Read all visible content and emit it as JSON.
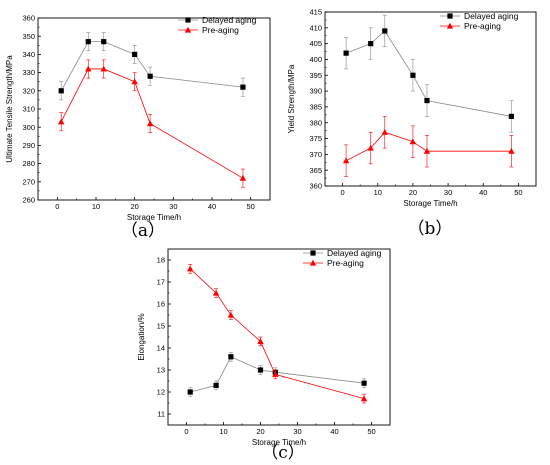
{
  "chart_data": [
    {
      "type": "line",
      "panel_label": "（a）",
      "xlabel": "Storage Time/h",
      "ylabel": "Ultimate Tensile Strength/MPa",
      "xlim": [
        -5,
        55
      ],
      "ylim": [
        260,
        360
      ],
      "xticks": [
        0,
        10,
        20,
        30,
        40,
        50
      ],
      "yticks": [
        260,
        270,
        280,
        290,
        300,
        310,
        320,
        330,
        340,
        350,
        360
      ],
      "legend_position": "top-right",
      "series": [
        {
          "name": "Delayed aging",
          "marker": "square",
          "color": "#000000",
          "line_color": "#888888",
          "x": [
            1,
            8,
            12,
            20,
            24,
            48
          ],
          "y": [
            320,
            347,
            347,
            340,
            328,
            322
          ],
          "err": [
            5,
            5,
            5,
            5,
            5,
            5
          ]
        },
        {
          "name": "Pre-aging",
          "marker": "triangle",
          "color": "#ff0000",
          "line_color": "#ff0000",
          "x": [
            1,
            8,
            12,
            20,
            24,
            48
          ],
          "y": [
            303,
            332,
            332,
            325,
            302,
            272
          ],
          "err": [
            5,
            5,
            5,
            5,
            5,
            5
          ]
        }
      ]
    },
    {
      "type": "line",
      "panel_label": "（b）",
      "xlabel": "Storage Time/h",
      "ylabel": "Yield Strength/MPa",
      "xlim": [
        -5,
        55
      ],
      "ylim": [
        360,
        415
      ],
      "xticks": [
        0,
        10,
        20,
        30,
        40,
        50
      ],
      "yticks": [
        360,
        365,
        370,
        375,
        380,
        385,
        390,
        395,
        400,
        405,
        410,
        415
      ],
      "legend_position": "top-right",
      "series": [
        {
          "name": "Delayed aging",
          "marker": "square",
          "color": "#000000",
          "line_color": "#888888",
          "x": [
            1,
            8,
            12,
            20,
            24,
            48
          ],
          "y": [
            402,
            405,
            409,
            395,
            387,
            382
          ],
          "err": [
            5,
            5,
            5,
            5,
            5,
            5
          ]
        },
        {
          "name": "Pre-aging",
          "marker": "triangle",
          "color": "#ff0000",
          "line_color": "#ff0000",
          "x": [
            1,
            8,
            12,
            20,
            24,
            48
          ],
          "y": [
            368,
            372,
            377,
            374,
            371,
            371
          ],
          "err": [
            5,
            5,
            5,
            5,
            5,
            5
          ]
        }
      ]
    },
    {
      "type": "line",
      "panel_label": "（c）",
      "xlabel": "Storage Time/h",
      "ylabel": "Elongation/%",
      "xlim": [
        -5,
        55
      ],
      "ylim": [
        10.5,
        18.5
      ],
      "xticks": [
        0,
        10,
        20,
        30,
        40,
        50
      ],
      "yticks": [
        11,
        12,
        13,
        14,
        15,
        16,
        17,
        18
      ],
      "legend_position": "top-right",
      "series": [
        {
          "name": "Delayed aging",
          "marker": "square",
          "color": "#000000",
          "line_color": "#888888",
          "x": [
            1,
            8,
            12,
            20,
            24,
            48
          ],
          "y": [
            12.0,
            12.3,
            13.6,
            13.0,
            12.9,
            12.4
          ],
          "err": [
            0.2,
            0.2,
            0.2,
            0.2,
            0.2,
            0.2
          ]
        },
        {
          "name": "Pre-aging",
          "marker": "triangle",
          "color": "#ff0000",
          "line_color": "#ff0000",
          "x": [
            1,
            8,
            12,
            20,
            24,
            48
          ],
          "y": [
            17.6,
            16.5,
            15.5,
            14.3,
            12.8,
            11.7
          ],
          "err": [
            0.2,
            0.2,
            0.2,
            0.2,
            0.2,
            0.2
          ]
        }
      ]
    }
  ]
}
